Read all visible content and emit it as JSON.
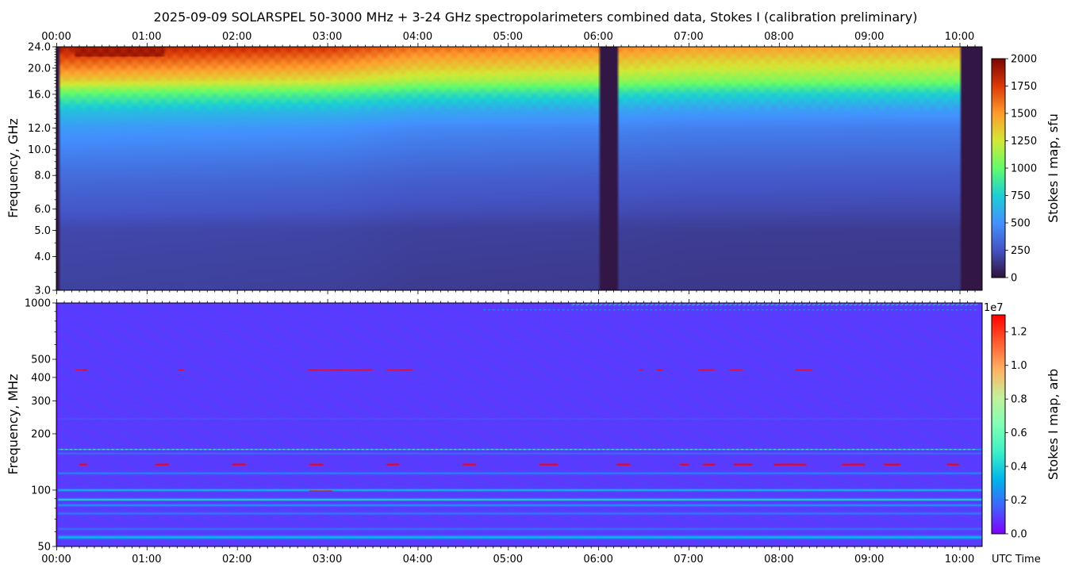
{
  "title": "2025-09-09  SOLARSPEL  50-3000 MHz  +  3-24 GHz  spectropolarimeters combined data,  Stokes I  (calibration preliminary)",
  "colors": {
    "frame": "#000000",
    "background": "#ffffff",
    "turbo_stops": [
      "#30123b",
      "#4454c4",
      "#4391fe",
      "#1bcfd4",
      "#62fc6b",
      "#d3e835",
      "#fe9b2d",
      "#db3a07",
      "#7a0403"
    ],
    "rainbow_stops": [
      "#8000ff",
      "#4162fd",
      "#00b5eb",
      "#3cf1c6",
      "#80ffb4",
      "#c4f09a",
      "#ffb262",
      "#ff5c2f",
      "#ff0000"
    ]
  },
  "chart_data": [
    {
      "type": "heatmap",
      "panel": "top",
      "colormap": "turbo",
      "xlabel": "",
      "top_x_ticks": [
        "00:00",
        "01:00",
        "02:00",
        "03:00",
        "04:00",
        "05:00",
        "06:00",
        "07:00",
        "08:00",
        "09:00",
        "10:00"
      ],
      "xlim_hours": [
        0.0,
        10.25
      ],
      "ylabel": "Frequency, GHz",
      "y_scale": "log",
      "ylim": [
        3.0,
        24.0
      ],
      "y_ticks": [
        24.0,
        20.0,
        16.0,
        12.0,
        10.0,
        8.0,
        6.0,
        5.0,
        4.0,
        3.0
      ],
      "y_tick_labels": [
        "24.0",
        "20.0",
        "16.0",
        "12.0",
        "10.0",
        "8.0",
        "6.0",
        "5.0",
        "4.0",
        "3.0"
      ],
      "colorbar": {
        "label": "Stokes I map, sfu",
        "range": [
          0,
          2000
        ],
        "ticks": [
          "2000",
          "1750",
          "1500",
          "1250",
          "1000",
          "750",
          "500",
          "250",
          "0"
        ]
      },
      "data_start_hours": 0.02,
      "data_gaps_hours": [
        [
          6.0,
          6.23
        ],
        [
          10.02,
          10.25
        ]
      ],
      "intensity_profile_sfu": [
        {
          "freq_ghz": 3.0,
          "value": 170
        },
        {
          "freq_ghz": 5.0,
          "value": 190
        },
        {
          "freq_ghz": 6.0,
          "value": 250
        },
        {
          "freq_ghz": 8.0,
          "value": 330
        },
        {
          "freq_ghz": 10.0,
          "value": 420
        },
        {
          "freq_ghz": 12.0,
          "value": 500
        },
        {
          "freq_ghz": 14.0,
          "value": 650
        },
        {
          "freq_ghz": 16.0,
          "value": 900
        },
        {
          "freq_ghz": 18.0,
          "value": 1250
        },
        {
          "freq_ghz": 20.0,
          "value": 1450
        },
        {
          "freq_ghz": 22.0,
          "value": 1600
        },
        {
          "freq_ghz": 24.0,
          "value": 1750
        }
      ],
      "time_trend": [
        {
          "hour": 0.0,
          "factor": 1.08
        },
        {
          "hour": 1.0,
          "factor": 1.06
        },
        {
          "hour": 3.0,
          "factor": 1.02
        },
        {
          "hour": 4.0,
          "factor": 0.93
        },
        {
          "hour": 6.0,
          "factor": 0.9
        },
        {
          "hour": 7.0,
          "factor": 0.86
        },
        {
          "hour": 10.0,
          "factor": 0.84
        }
      ],
      "peak_region": {
        "hours": [
          0.2,
          1.2
        ],
        "freq_ghz_min": 22.0,
        "value": 1900
      }
    },
    {
      "type": "heatmap",
      "panel": "bottom",
      "colormap": "rainbow",
      "x_ticks": [
        "00:00",
        "01:00",
        "02:00",
        "03:00",
        "04:00",
        "05:00",
        "06:00",
        "07:00",
        "08:00",
        "09:00",
        "10:00"
      ],
      "xlim_hours": [
        0.0,
        10.25
      ],
      "xlabel": "UTC Time",
      "ylabel": "Frequency, MHz",
      "y_scale": "log",
      "ylim": [
        50,
        1000
      ],
      "y_ticks": [
        1000,
        500,
        400,
        300,
        200,
        100,
        50
      ],
      "y_tick_labels": [
        "1000",
        "500",
        "400",
        "300",
        "200",
        "100",
        "50"
      ],
      "colorbar": {
        "label": "Stokes I map, arb",
        "offset_label": "1e7",
        "range": [
          0,
          1.3
        ],
        "ticks": [
          "1.2",
          "1.0",
          "0.8",
          "0.6",
          "0.4",
          "0.2",
          "0.0"
        ]
      },
      "background_value": 0.1,
      "bands": [
        {
          "freq_mhz": 52,
          "width": 0.02,
          "value": 0.05
        },
        {
          "freq_mhz": 56,
          "width": 0.018,
          "value": 0.35
        },
        {
          "freq_mhz": 62,
          "width": 0.012,
          "value": 0.2
        },
        {
          "freq_mhz": 75,
          "width": 0.012,
          "value": 0.22
        },
        {
          "freq_mhz": 83,
          "width": 0.012,
          "value": 0.28
        },
        {
          "freq_mhz": 89,
          "width": 0.012,
          "value": 0.45
        },
        {
          "freq_mhz": 100,
          "width": 0.012,
          "value": 0.36
        },
        {
          "freq_mhz": 123,
          "width": 0.01,
          "value": 0.26
        },
        {
          "freq_mhz": 157,
          "width": 0.008,
          "value": 0.22
        },
        {
          "freq_mhz": 165,
          "width": 0.006,
          "value": 0.35
        },
        {
          "freq_mhz": 240,
          "width": 0.006,
          "value": 0.16
        }
      ],
      "rfi_segments": [
        {
          "freq_mhz": 440,
          "hours": [
            0.2,
            0.35
          ],
          "value": 1.3
        },
        {
          "freq_mhz": 440,
          "hours": [
            1.35,
            1.42
          ],
          "value": 1.3
        },
        {
          "freq_mhz": 440,
          "hours": [
            2.78,
            3.5
          ],
          "value": 1.3
        },
        {
          "freq_mhz": 440,
          "hours": [
            3.65,
            3.95
          ],
          "value": 1.3
        },
        {
          "freq_mhz": 440,
          "hours": [
            6.45,
            6.5
          ],
          "value": 1.3
        },
        {
          "freq_mhz": 440,
          "hours": [
            6.65,
            6.72
          ],
          "value": 1.3
        },
        {
          "freq_mhz": 440,
          "hours": [
            7.1,
            7.3
          ],
          "value": 1.3
        },
        {
          "freq_mhz": 440,
          "hours": [
            7.45,
            7.6
          ],
          "value": 1.3
        },
        {
          "freq_mhz": 440,
          "hours": [
            8.18,
            8.37
          ],
          "value": 1.3
        },
        {
          "freq_mhz": 137,
          "hours": [
            0.25,
            0.35
          ],
          "value": 1.3
        },
        {
          "freq_mhz": 137,
          "hours": [
            1.1,
            1.25
          ],
          "value": 1.3
        },
        {
          "freq_mhz": 137,
          "hours": [
            1.95,
            2.1
          ],
          "value": 1.3
        },
        {
          "freq_mhz": 137,
          "hours": [
            2.8,
            2.95
          ],
          "value": 1.3
        },
        {
          "freq_mhz": 137,
          "hours": [
            3.65,
            3.8
          ],
          "value": 1.3
        },
        {
          "freq_mhz": 137,
          "hours": [
            4.5,
            4.65
          ],
          "value": 1.3
        },
        {
          "freq_mhz": 137,
          "hours": [
            5.35,
            5.55
          ],
          "value": 1.3
        },
        {
          "freq_mhz": 137,
          "hours": [
            6.2,
            6.35
          ],
          "value": 1.3
        },
        {
          "freq_mhz": 137,
          "hours": [
            6.9,
            7.0
          ],
          "value": 1.3
        },
        {
          "freq_mhz": 137,
          "hours": [
            7.15,
            7.3
          ],
          "value": 1.3
        },
        {
          "freq_mhz": 137,
          "hours": [
            7.5,
            7.7
          ],
          "value": 1.3
        },
        {
          "freq_mhz": 137,
          "hours": [
            7.95,
            8.3
          ],
          "value": 1.3
        },
        {
          "freq_mhz": 137,
          "hours": [
            8.7,
            8.95
          ],
          "value": 1.3
        },
        {
          "freq_mhz": 137,
          "hours": [
            9.15,
            9.35
          ],
          "value": 1.3
        },
        {
          "freq_mhz": 137,
          "hours": [
            9.85,
            10.0
          ],
          "value": 1.3
        },
        {
          "freq_mhz": 99,
          "hours": [
            2.8,
            3.05
          ],
          "value": 1.3
        },
        {
          "freq_mhz": 165,
          "hours": [
            0.05,
            10.2
          ],
          "value": 0.75
        },
        {
          "freq_mhz": 980,
          "hours": [
            5.7,
            10.2
          ],
          "value": 0.45
        },
        {
          "freq_mhz": 920,
          "hours": [
            4.7,
            10.2
          ],
          "value": 0.35
        }
      ]
    }
  ]
}
